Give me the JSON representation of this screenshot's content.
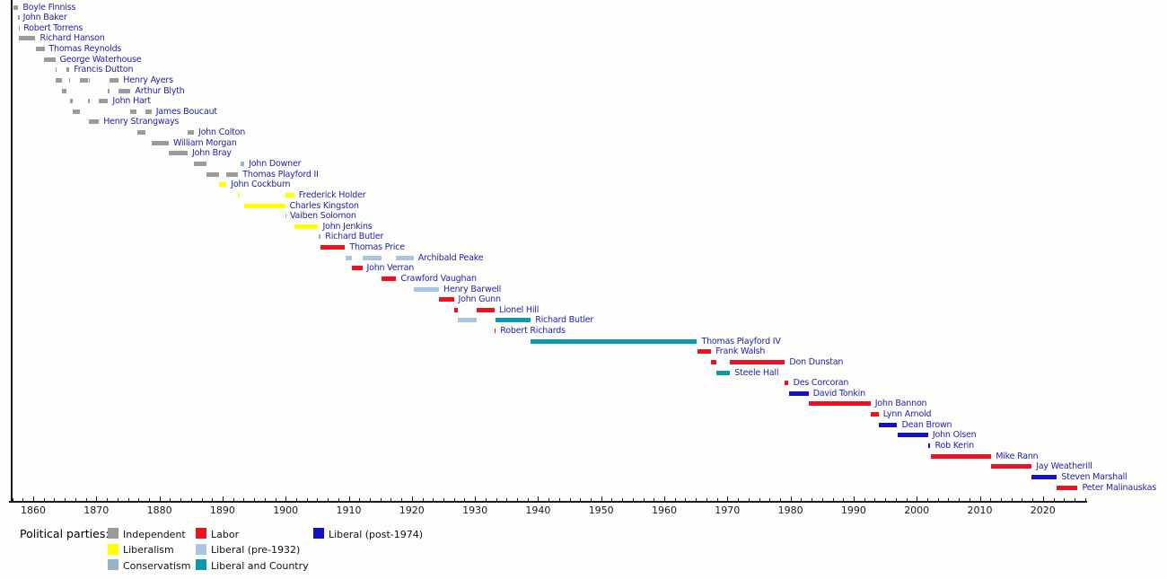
{
  "chart_data": {
    "type": "timeline",
    "axis": {
      "start": 1856.4,
      "end": 2026.9,
      "major_tick_years": [
        1860,
        1870,
        1880,
        1890,
        1900,
        1910,
        1920,
        1930,
        1940,
        1950,
        1960,
        1970,
        1980,
        1990,
        2000,
        2010,
        2020
      ],
      "minor_tick_step_years": 1.6667
    },
    "parties": {
      "independent": {
        "label": "Independent",
        "color": "#9b9b9b"
      },
      "liberalism": {
        "label": "Liberalism",
        "color": "#ffff00"
      },
      "conservatism": {
        "label": "Conservatism",
        "color": "#96b2c6"
      },
      "labor": {
        "label": "Labor",
        "color": "#ee1122"
      },
      "liberal_pre_1932": {
        "label": "Liberal (pre-1932)",
        "color": "#a9c6e1"
      },
      "liberal_and_country": {
        "label": "Liberal and Country",
        "color": "#0e98ac"
      },
      "liberal_post_1974": {
        "label": "Liberal (post-1974)",
        "color": "#1212c4"
      }
    },
    "premiers": [
      {
        "name": "Boyle Finniss",
        "terms": [
          {
            "start": 1856.81,
            "end": 1857.64,
            "party": "independent"
          }
        ]
      },
      {
        "name": "John Baker",
        "terms": [
          {
            "start": 1857.64,
            "end": 1857.67,
            "party": "independent"
          }
        ]
      },
      {
        "name": "Robert Torrens",
        "terms": [
          {
            "start": 1857.67,
            "end": 1857.75,
            "party": "independent"
          }
        ]
      },
      {
        "name": "Richard Hanson",
        "terms": [
          {
            "start": 1857.75,
            "end": 1860.35,
            "party": "independent"
          }
        ]
      },
      {
        "name": "Thomas Reynolds",
        "terms": [
          {
            "start": 1860.35,
            "end": 1861.77,
            "party": "independent"
          }
        ]
      },
      {
        "name": "George Waterhouse",
        "terms": [
          {
            "start": 1861.77,
            "end": 1863.5,
            "party": "independent"
          }
        ]
      },
      {
        "name": "Francis Dutton",
        "terms": [
          {
            "start": 1863.5,
            "end": 1863.54,
            "party": "independent"
          },
          {
            "start": 1865.22,
            "end": 1865.72,
            "party": "independent"
          }
        ]
      },
      {
        "name": "Henry Ayers",
        "terms": [
          {
            "start": 1863.54,
            "end": 1864.59,
            "party": "independent"
          },
          {
            "start": 1865.72,
            "end": 1865.81,
            "party": "independent"
          },
          {
            "start": 1867.34,
            "end": 1868.73,
            "party": "independent"
          },
          {
            "start": 1868.78,
            "end": 1868.84,
            "party": "independent"
          },
          {
            "start": 1872.06,
            "end": 1873.55,
            "party": "independent"
          }
        ]
      },
      {
        "name": "Arthur Blyth",
        "terms": [
          {
            "start": 1864.59,
            "end": 1865.22,
            "party": "independent"
          },
          {
            "start": 1871.86,
            "end": 1872.06,
            "party": "independent"
          },
          {
            "start": 1873.55,
            "end": 1875.42,
            "party": "independent"
          }
        ]
      },
      {
        "name": "John Hart",
        "terms": [
          {
            "start": 1865.81,
            "end": 1866.24,
            "party": "independent"
          },
          {
            "start": 1868.73,
            "end": 1868.78,
            "party": "independent"
          },
          {
            "start": 1870.41,
            "end": 1871.86,
            "party": "independent"
          }
        ]
      },
      {
        "name": "James Boucaut",
        "terms": [
          {
            "start": 1866.24,
            "end": 1867.34,
            "party": "independent"
          },
          {
            "start": 1875.42,
            "end": 1876.43,
            "party": "independent"
          },
          {
            "start": 1877.82,
            "end": 1878.74,
            "party": "independent"
          }
        ]
      },
      {
        "name": "Henry Strangways",
        "terms": [
          {
            "start": 1868.84,
            "end": 1870.41,
            "party": "independent"
          }
        ]
      },
      {
        "name": "John Colton",
        "terms": [
          {
            "start": 1876.43,
            "end": 1877.82,
            "party": "independent"
          },
          {
            "start": 1884.46,
            "end": 1885.46,
            "party": "independent"
          }
        ]
      },
      {
        "name": "William Morgan",
        "terms": [
          {
            "start": 1878.74,
            "end": 1881.48,
            "party": "independent"
          }
        ]
      },
      {
        "name": "John Bray",
        "terms": [
          {
            "start": 1881.48,
            "end": 1884.46,
            "party": "independent"
          }
        ]
      },
      {
        "name": "John Downer",
        "terms": [
          {
            "start": 1885.46,
            "end": 1887.44,
            "party": "independent"
          },
          {
            "start": 1892.79,
            "end": 1893.46,
            "party": "conservatism"
          }
        ]
      },
      {
        "name": "Thomas Playford II",
        "terms": [
          {
            "start": 1887.44,
            "end": 1889.49,
            "party": "independent"
          },
          {
            "start": 1890.63,
            "end": 1892.47,
            "party": "independent"
          }
        ]
      },
      {
        "name": "John Cockburn",
        "terms": [
          {
            "start": 1889.49,
            "end": 1890.63,
            "party": "liberalism"
          }
        ]
      },
      {
        "name": "Frederick Holder",
        "terms": [
          {
            "start": 1892.47,
            "end": 1892.79,
            "party": "liberalism"
          },
          {
            "start": 1899.92,
            "end": 1901.37,
            "party": "liberalism"
          }
        ]
      },
      {
        "name": "Charles Kingston",
        "terms": [
          {
            "start": 1893.46,
            "end": 1899.92,
            "party": "liberalism"
          }
        ]
      },
      {
        "name": "Vaiben Solomon",
        "terms": [
          {
            "start": 1899.92,
            "end": 1899.97,
            "party": "conservatism"
          }
        ]
      },
      {
        "name": "John Jenkins",
        "terms": [
          {
            "start": 1901.37,
            "end": 1905.16,
            "party": "liberalism"
          }
        ]
      },
      {
        "name": "Richard Butler",
        "terms": [
          {
            "start": 1905.16,
            "end": 1905.56,
            "party": "conservatism"
          }
        ]
      },
      {
        "name": "Thomas Price",
        "terms": [
          {
            "start": 1905.56,
            "end": 1909.41,
            "party": "labor"
          }
        ]
      },
      {
        "name": "Archibald Peake",
        "terms": [
          {
            "start": 1909.43,
            "end": 1910.42,
            "party": "liberal_pre_1932"
          },
          {
            "start": 1912.13,
            "end": 1915.25,
            "party": "liberal_pre_1932"
          },
          {
            "start": 1917.53,
            "end": 1920.27,
            "party": "liberal_pre_1932"
          }
        ]
      },
      {
        "name": "John Verran",
        "terms": [
          {
            "start": 1910.42,
            "end": 1912.13,
            "party": "labor"
          }
        ]
      },
      {
        "name": "Crawford Vaughan",
        "terms": [
          {
            "start": 1915.25,
            "end": 1917.53,
            "party": "labor"
          }
        ]
      },
      {
        "name": "Henry Barwell",
        "terms": [
          {
            "start": 1920.27,
            "end": 1924.29,
            "party": "liberal_pre_1932"
          }
        ]
      },
      {
        "name": "John Gunn",
        "terms": [
          {
            "start": 1924.29,
            "end": 1926.65,
            "party": "labor"
          }
        ]
      },
      {
        "name": "Lionel Hill",
        "terms": [
          {
            "start": 1926.65,
            "end": 1927.27,
            "party": "labor"
          },
          {
            "start": 1930.29,
            "end": 1933.12,
            "party": "labor"
          }
        ]
      },
      {
        "name": "Richard Butler",
        "terms": [
          {
            "start": 1927.27,
            "end": 1930.29,
            "party": "liberal_pre_1932"
          },
          {
            "start": 1933.3,
            "end": 1938.84,
            "party": "liberal_and_country"
          }
        ]
      },
      {
        "name": "Robert Richards",
        "terms": [
          {
            "start": 1933.12,
            "end": 1933.3,
            "party": "labor"
          }
        ]
      },
      {
        "name": "Thomas Playford IV",
        "terms": [
          {
            "start": 1938.84,
            "end": 1965.19,
            "party": "liberal_and_country"
          }
        ]
      },
      {
        "name": "Frank Walsh",
        "terms": [
          {
            "start": 1965.19,
            "end": 1967.42,
            "party": "labor"
          }
        ]
      },
      {
        "name": "Don Dunstan",
        "terms": [
          {
            "start": 1967.42,
            "end": 1968.29,
            "party": "labor"
          },
          {
            "start": 1970.42,
            "end": 1979.12,
            "party": "labor"
          }
        ]
      },
      {
        "name": "Steele Hall",
        "terms": [
          {
            "start": 1968.29,
            "end": 1970.42,
            "party": "liberal_and_country"
          }
        ]
      },
      {
        "name": "Des Corcoran",
        "terms": [
          {
            "start": 1979.12,
            "end": 1979.71,
            "party": "labor"
          }
        ]
      },
      {
        "name": "David Tonkin",
        "terms": [
          {
            "start": 1979.71,
            "end": 1982.86,
            "party": "liberal_post_1974"
          }
        ]
      },
      {
        "name": "John Bannon",
        "terms": [
          {
            "start": 1982.86,
            "end": 1992.67,
            "party": "labor"
          }
        ]
      },
      {
        "name": "Lynn Arnold",
        "terms": [
          {
            "start": 1992.67,
            "end": 1993.95,
            "party": "labor"
          }
        ]
      },
      {
        "name": "Dean Brown",
        "terms": [
          {
            "start": 1993.95,
            "end": 1996.91,
            "party": "liberal_post_1974"
          }
        ]
      },
      {
        "name": "John Olsen",
        "terms": [
          {
            "start": 1996.91,
            "end": 2001.81,
            "party": "liberal_post_1974"
          }
        ]
      },
      {
        "name": "Rob Kerin",
        "terms": [
          {
            "start": 2001.81,
            "end": 2002.17,
            "party": "liberal_post_1974"
          }
        ]
      },
      {
        "name": "Mike Rann",
        "terms": [
          {
            "start": 2002.17,
            "end": 2011.8,
            "party": "labor"
          }
        ]
      },
      {
        "name": "Jay Weatherill",
        "terms": [
          {
            "start": 2011.8,
            "end": 2018.21,
            "party": "labor"
          }
        ]
      },
      {
        "name": "Steven Marshall",
        "terms": [
          {
            "start": 2018.21,
            "end": 2022.22,
            "party": "liberal_post_1974"
          }
        ]
      },
      {
        "name": "Peter Malinauskas",
        "terms": [
          {
            "start": 2022.22,
            "end": 2025.5,
            "party": "labor"
          }
        ]
      }
    ]
  },
  "legend": {
    "title": "Political parties:",
    "columns": [
      [
        "independent",
        "liberalism",
        "conservatism"
      ],
      [
        "labor",
        "liberal_pre_1932",
        "liberal_and_country"
      ],
      [
        "liberal_post_1974"
      ]
    ]
  }
}
